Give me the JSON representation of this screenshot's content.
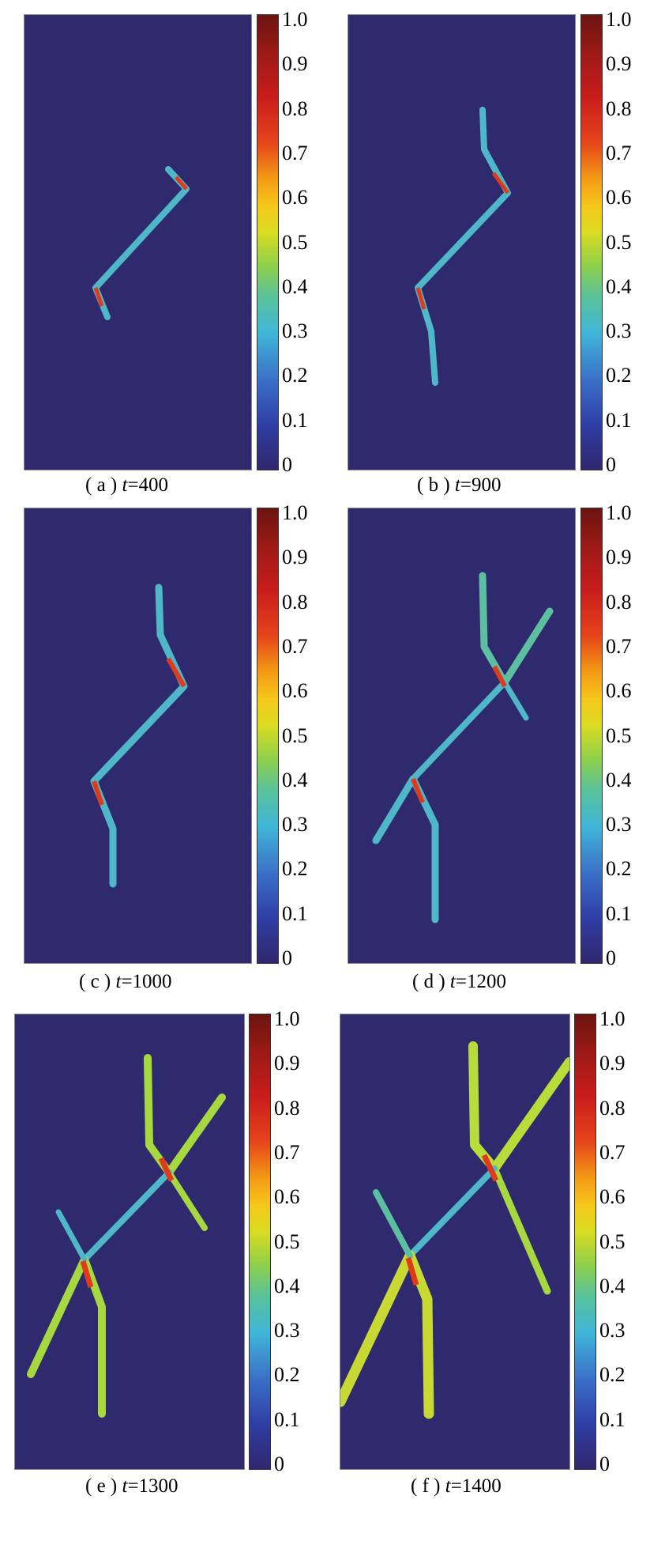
{
  "colorbar": {
    "ticks": [
      "1.0",
      "0.9",
      "0.8",
      "0.7",
      "0.6",
      "0.5",
      "0.4",
      "0.3",
      "0.2",
      "0.1",
      "0"
    ]
  },
  "panels": [
    {
      "label": "( a )",
      "var": "t",
      "value": "=400"
    },
    {
      "label": "( b )",
      "var": "t",
      "value": "=900"
    },
    {
      "label": "( c )",
      "var": "t",
      "value": "=1000"
    },
    {
      "label": "( d )",
      "var": "t",
      "value": "=1200"
    },
    {
      "label": "( e )",
      "var": "t",
      "value": "=1300"
    },
    {
      "label": "( f )",
      "var": "t",
      "value": "=1400"
    }
  ]
}
